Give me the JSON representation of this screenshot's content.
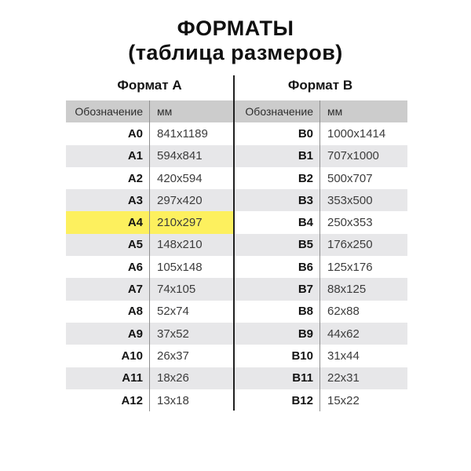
{
  "title": {
    "line1": "ФОРМАТЫ",
    "line2": "(таблица размеров)"
  },
  "colors": {
    "highlight": "#fdf05e",
    "row-alt": "#e7e7e9",
    "header-bg": "#cccccc"
  },
  "chart_data": {
    "type": "table",
    "title": "ФОРМАТЫ",
    "subtitle": "(таблица размеров)",
    "highlighted_row": "A4",
    "tables": [
      {
        "title": "Формат А",
        "columns": [
          "Обозначение",
          "мм"
        ],
        "rows": [
          {
            "code": "A0",
            "size": "841x1189",
            "highlight": false
          },
          {
            "code": "A1",
            "size": "594x841",
            "highlight": false
          },
          {
            "code": "A2",
            "size": "420x594",
            "highlight": false
          },
          {
            "code": "A3",
            "size": "297x420",
            "highlight": false
          },
          {
            "code": "A4",
            "size": "210x297",
            "highlight": true
          },
          {
            "code": "A5",
            "size": "148x210",
            "highlight": false
          },
          {
            "code": "A6",
            "size": "105x148",
            "highlight": false
          },
          {
            "code": "A7",
            "size": "74x105",
            "highlight": false
          },
          {
            "code": "A8",
            "size": "52x74",
            "highlight": false
          },
          {
            "code": "A9",
            "size": "37x52",
            "highlight": false
          },
          {
            "code": "A10",
            "size": "26x37",
            "highlight": false
          },
          {
            "code": "A11",
            "size": "18x26",
            "highlight": false
          },
          {
            "code": "A12",
            "size": "13x18",
            "highlight": false
          }
        ]
      },
      {
        "title": "Формат В",
        "columns": [
          "Обозначение",
          "мм"
        ],
        "rows": [
          {
            "code": "B0",
            "size": "1000x1414",
            "highlight": false
          },
          {
            "code": "B1",
            "size": "707x1000",
            "highlight": false
          },
          {
            "code": "B2",
            "size": "500x707",
            "highlight": false
          },
          {
            "code": "B3",
            "size": "353x500",
            "highlight": false
          },
          {
            "code": "B4",
            "size": "250x353",
            "highlight": false
          },
          {
            "code": "B5",
            "size": "176x250",
            "highlight": false
          },
          {
            "code": "B6",
            "size": "125x176",
            "highlight": false
          },
          {
            "code": "B7",
            "size": "88x125",
            "highlight": false
          },
          {
            "code": "B8",
            "size": "62x88",
            "highlight": false
          },
          {
            "code": "B9",
            "size": "44x62",
            "highlight": false
          },
          {
            "code": "B10",
            "size": "31x44",
            "highlight": false
          },
          {
            "code": "B11",
            "size": "22x31",
            "highlight": false
          },
          {
            "code": "B12",
            "size": "15x22",
            "highlight": false
          }
        ]
      }
    ]
  }
}
